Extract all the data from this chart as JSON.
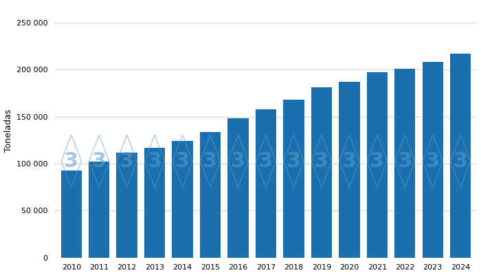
{
  "years": [
    2010,
    2011,
    2012,
    2013,
    2014,
    2015,
    2016,
    2017,
    2018,
    2019,
    2020,
    2021,
    2022,
    2023,
    2024
  ],
  "values": [
    93000,
    102000,
    112000,
    117000,
    124000,
    134000,
    148000,
    158000,
    168000,
    181000,
    187000,
    197000,
    201000,
    208000,
    217000
  ],
  "bar_color": "#1a6faf",
  "watermark_color": "#5b9dc9",
  "ylim": [
    0,
    270000
  ],
  "yticks": [
    0,
    50000,
    100000,
    150000,
    200000,
    250000
  ],
  "ylabel": "Toneladas",
  "background_color": "#ffffff",
  "grid_color": "#d8d8d8"
}
